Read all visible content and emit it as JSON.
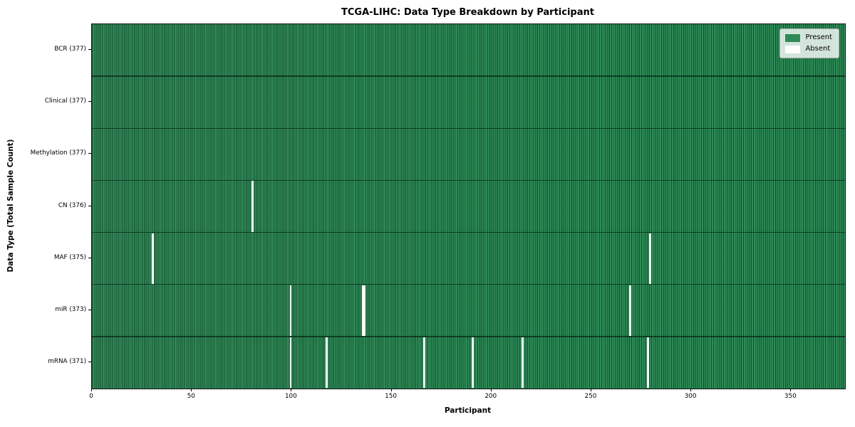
{
  "chart_data": {
    "type": "heatmap",
    "title": "TCGA-LIHC: Data Type Breakdown by Participant",
    "xlabel": "Participant",
    "ylabel": "Data Type (Total Sample Count)",
    "x_range": [
      0,
      377
    ],
    "x_ticks": [
      0,
      50,
      100,
      150,
      200,
      250,
      300,
      350
    ],
    "n_participants": 377,
    "grid": false,
    "colors": {
      "present": "#2e8b57",
      "absent": "#ffffff",
      "cell_edge": "rgba(0,20,8,0.5)"
    },
    "legend": {
      "position": "upper right",
      "entries": [
        {
          "label": "Present",
          "color": "#2e8b57"
        },
        {
          "label": "Absent",
          "color": "#ffffff"
        }
      ]
    },
    "rows": [
      {
        "label": "BCR (377)",
        "data_type": "BCR",
        "present_count": 377,
        "absent_participants": []
      },
      {
        "label": "Clinical (377)",
        "data_type": "Clinical",
        "present_count": 377,
        "absent_participants": []
      },
      {
        "label": "Methylation (377)",
        "data_type": "Methylation",
        "present_count": 377,
        "absent_participants": []
      },
      {
        "label": "CN (376)",
        "data_type": "CN",
        "present_count": 376,
        "absent_participants": [
          80
        ]
      },
      {
        "label": "MAF (375)",
        "data_type": "MAF",
        "present_count": 375,
        "absent_participants": [
          30,
          279
        ]
      },
      {
        "label": "miR (373)",
        "data_type": "miR",
        "present_count": 373,
        "absent_participants": [
          99,
          135,
          136,
          269
        ]
      },
      {
        "label": "mRNA (371)",
        "data_type": "mRNA",
        "present_count": 371,
        "absent_participants": [
          99,
          117,
          166,
          190,
          215,
          278
        ]
      }
    ]
  }
}
